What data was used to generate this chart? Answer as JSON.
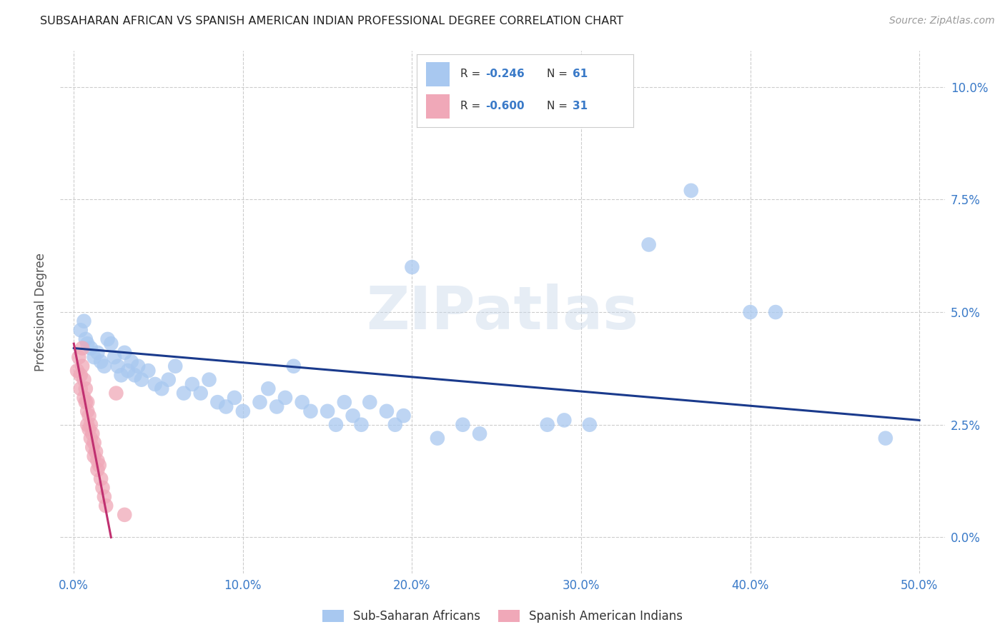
{
  "title": "SUBSAHARAN AFRICAN VS SPANISH AMERICAN INDIAN PROFESSIONAL DEGREE CORRELATION CHART",
  "source": "Source: ZipAtlas.com",
  "ylabel": "Professional Degree",
  "ylabel_ticks": [
    "0.0%",
    "2.5%",
    "5.0%",
    "7.5%",
    "10.0%"
  ],
  "ylabel_tick_vals": [
    0.0,
    0.025,
    0.05,
    0.075,
    0.1
  ],
  "xlabel_ticks": [
    "0.0%",
    "10.0%",
    "20.0%",
    "30.0%",
    "40.0%",
    "50.0%"
  ],
  "xlabel_tick_vals": [
    0.0,
    0.1,
    0.2,
    0.3,
    0.4,
    0.5
  ],
  "xlim": [
    -0.008,
    0.515
  ],
  "ylim": [
    -0.008,
    0.108
  ],
  "watermark": "ZIPatlas",
  "legend_blue_r": "-0.246",
  "legend_blue_n": "61",
  "legend_pink_r": "-0.600",
  "legend_pink_n": "31",
  "legend_blue_label": "Sub-Saharan Africans",
  "legend_pink_label": "Spanish American Indians",
  "blue_color": "#a8c8f0",
  "pink_color": "#f0a8b8",
  "blue_line_color": "#1a3a8c",
  "pink_line_color": "#c03070",
  "blue_scatter": [
    [
      0.004,
      0.046
    ],
    [
      0.006,
      0.048
    ],
    [
      0.007,
      0.044
    ],
    [
      0.008,
      0.043
    ],
    [
      0.01,
      0.042
    ],
    [
      0.012,
      0.04
    ],
    [
      0.014,
      0.041
    ],
    [
      0.016,
      0.039
    ],
    [
      0.018,
      0.038
    ],
    [
      0.02,
      0.044
    ],
    [
      0.022,
      0.043
    ],
    [
      0.024,
      0.04
    ],
    [
      0.026,
      0.038
    ],
    [
      0.028,
      0.036
    ],
    [
      0.03,
      0.041
    ],
    [
      0.032,
      0.037
    ],
    [
      0.034,
      0.039
    ],
    [
      0.036,
      0.036
    ],
    [
      0.038,
      0.038
    ],
    [
      0.04,
      0.035
    ],
    [
      0.044,
      0.037
    ],
    [
      0.048,
      0.034
    ],
    [
      0.052,
      0.033
    ],
    [
      0.056,
      0.035
    ],
    [
      0.06,
      0.038
    ],
    [
      0.065,
      0.032
    ],
    [
      0.07,
      0.034
    ],
    [
      0.075,
      0.032
    ],
    [
      0.08,
      0.035
    ],
    [
      0.085,
      0.03
    ],
    [
      0.09,
      0.029
    ],
    [
      0.095,
      0.031
    ],
    [
      0.1,
      0.028
    ],
    [
      0.11,
      0.03
    ],
    [
      0.115,
      0.033
    ],
    [
      0.12,
      0.029
    ],
    [
      0.125,
      0.031
    ],
    [
      0.13,
      0.038
    ],
    [
      0.135,
      0.03
    ],
    [
      0.14,
      0.028
    ],
    [
      0.15,
      0.028
    ],
    [
      0.155,
      0.025
    ],
    [
      0.16,
      0.03
    ],
    [
      0.165,
      0.027
    ],
    [
      0.17,
      0.025
    ],
    [
      0.175,
      0.03
    ],
    [
      0.185,
      0.028
    ],
    [
      0.19,
      0.025
    ],
    [
      0.195,
      0.027
    ],
    [
      0.2,
      0.06
    ],
    [
      0.215,
      0.022
    ],
    [
      0.23,
      0.025
    ],
    [
      0.24,
      0.023
    ],
    [
      0.28,
      0.025
    ],
    [
      0.29,
      0.026
    ],
    [
      0.305,
      0.025
    ],
    [
      0.34,
      0.065
    ],
    [
      0.365,
      0.077
    ],
    [
      0.4,
      0.05
    ],
    [
      0.415,
      0.05
    ],
    [
      0.48,
      0.022
    ]
  ],
  "pink_scatter": [
    [
      0.002,
      0.037
    ],
    [
      0.003,
      0.04
    ],
    [
      0.004,
      0.036
    ],
    [
      0.004,
      0.033
    ],
    [
      0.005,
      0.038
    ],
    [
      0.005,
      0.042
    ],
    [
      0.006,
      0.035
    ],
    [
      0.006,
      0.031
    ],
    [
      0.007,
      0.033
    ],
    [
      0.007,
      0.03
    ],
    [
      0.008,
      0.03
    ],
    [
      0.008,
      0.028
    ],
    [
      0.008,
      0.025
    ],
    [
      0.009,
      0.027
    ],
    [
      0.009,
      0.024
    ],
    [
      0.01,
      0.025
    ],
    [
      0.01,
      0.022
    ],
    [
      0.011,
      0.023
    ],
    [
      0.011,
      0.02
    ],
    [
      0.012,
      0.021
    ],
    [
      0.012,
      0.018
    ],
    [
      0.013,
      0.019
    ],
    [
      0.014,
      0.017
    ],
    [
      0.014,
      0.015
    ],
    [
      0.015,
      0.016
    ],
    [
      0.016,
      0.013
    ],
    [
      0.017,
      0.011
    ],
    [
      0.018,
      0.009
    ],
    [
      0.019,
      0.007
    ],
    [
      0.025,
      0.032
    ],
    [
      0.03,
      0.005
    ]
  ],
  "blue_trendline": [
    [
      0.0,
      0.042
    ],
    [
      0.5,
      0.026
    ]
  ],
  "pink_trendline": [
    [
      0.0,
      0.043
    ],
    [
      0.022,
      0.0
    ]
  ],
  "grid_color": "#cccccc",
  "bg_color": "#ffffff",
  "tick_color": "#3a7ac8",
  "ylabel_color": "#555555",
  "title_color": "#222222",
  "source_color": "#999999"
}
